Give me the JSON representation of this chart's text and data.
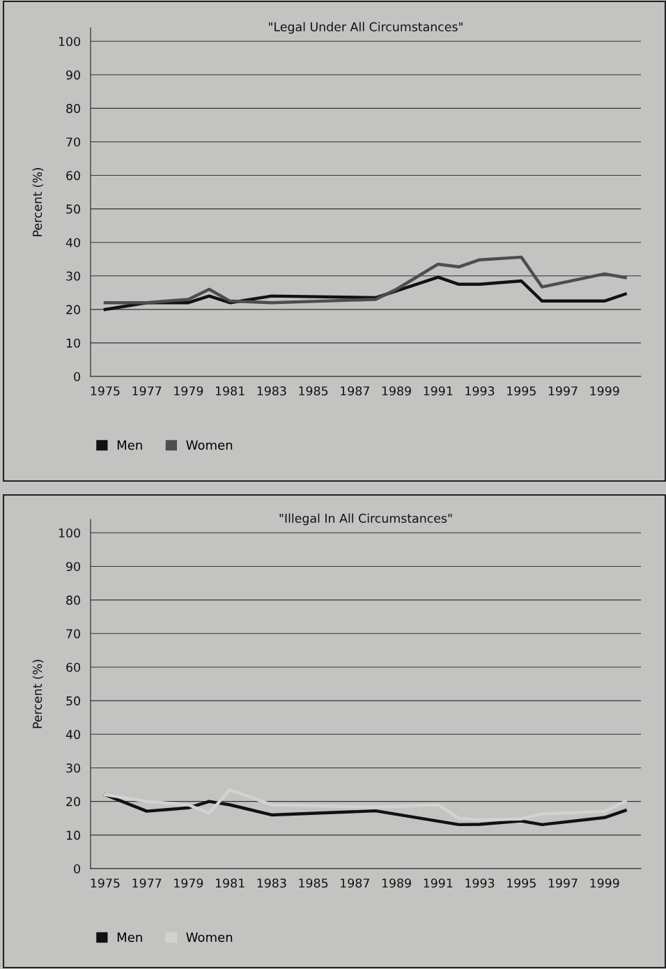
{
  "chart_data": [
    {
      "type": "line",
      "title": "\"Legal Under All Circumstances\"",
      "ylabel": "Percent (%)",
      "xlim": [
        1974.3,
        2000.75
      ],
      "xticks": [
        1975,
        1977,
        1979,
        1981,
        1983,
        1985,
        1987,
        1989,
        1991,
        1993,
        1995,
        1997,
        1999
      ],
      "ylim": [
        0,
        104
      ],
      "yticks": [
        0,
        10,
        20,
        30,
        40,
        50,
        60,
        70,
        80,
        90,
        100
      ],
      "grid": "y",
      "legend": "bottom left",
      "marker": "none",
      "line_style": "solid",
      "series": [
        {
          "name": "Men",
          "color": "#111111",
          "x": [
            1975,
            1977,
            1979,
            1980,
            1981,
            1983,
            1988,
            1991,
            1992,
            1993,
            1995,
            1996,
            1999,
            2000
          ],
          "values": [
            20,
            22,
            22,
            24,
            22,
            24,
            23.5,
            29.6,
            27.5,
            27.5,
            28.5,
            22.5,
            22.5,
            24.6
          ]
        },
        {
          "name": "Women",
          "color": "#4d4d4d",
          "x": [
            1975,
            1977,
            1979,
            1980,
            1981,
            1983,
            1988,
            1989,
            1991,
            1992,
            1993,
            1995,
            1996,
            1999,
            2000
          ],
          "values": [
            22,
            22,
            23,
            26,
            22.5,
            22,
            23,
            26,
            33.5,
            32.7,
            34.8,
            35.6,
            26.7,
            30.6,
            29.5
          ]
        }
      ]
    },
    {
      "type": "line",
      "title": "\"Illegal In All Circumstances\"",
      "ylabel": "Percent (%)",
      "xlim": [
        1974.3,
        2000.75
      ],
      "xticks": [
        1975,
        1977,
        1979,
        1981,
        1983,
        1985,
        1987,
        1989,
        1991,
        1993,
        1995,
        1997,
        1999
      ],
      "ylim": [
        0,
        104
      ],
      "yticks": [
        0,
        10,
        20,
        30,
        40,
        50,
        60,
        70,
        80,
        90,
        100
      ],
      "grid": "y",
      "legend": "bottom left",
      "marker": "none",
      "line_style": "solid",
      "series": [
        {
          "name": "Men",
          "color": "#111111",
          "x": [
            1975,
            1977,
            1979,
            1980,
            1981,
            1983,
            1988,
            1992,
            1993,
            1995,
            1996,
            1999,
            2000
          ],
          "values": [
            22,
            17.1,
            18.1,
            20,
            19,
            16,
            17.2,
            13.1,
            13.2,
            14.2,
            13.1,
            15.2,
            17.3
          ]
        },
        {
          "name": "Women",
          "color": "#d2d2d0",
          "x": [
            1975,
            1977,
            1979,
            1980,
            1981,
            1983,
            1988,
            1991,
            1992,
            1993,
            1995,
            1996,
            1999,
            2000
          ],
          "values": [
            22,
            20,
            19,
            16.5,
            23.5,
            19,
            18.3,
            19,
            15,
            14.5,
            14.8,
            16.3,
            17,
            20
          ]
        }
      ]
    }
  ]
}
